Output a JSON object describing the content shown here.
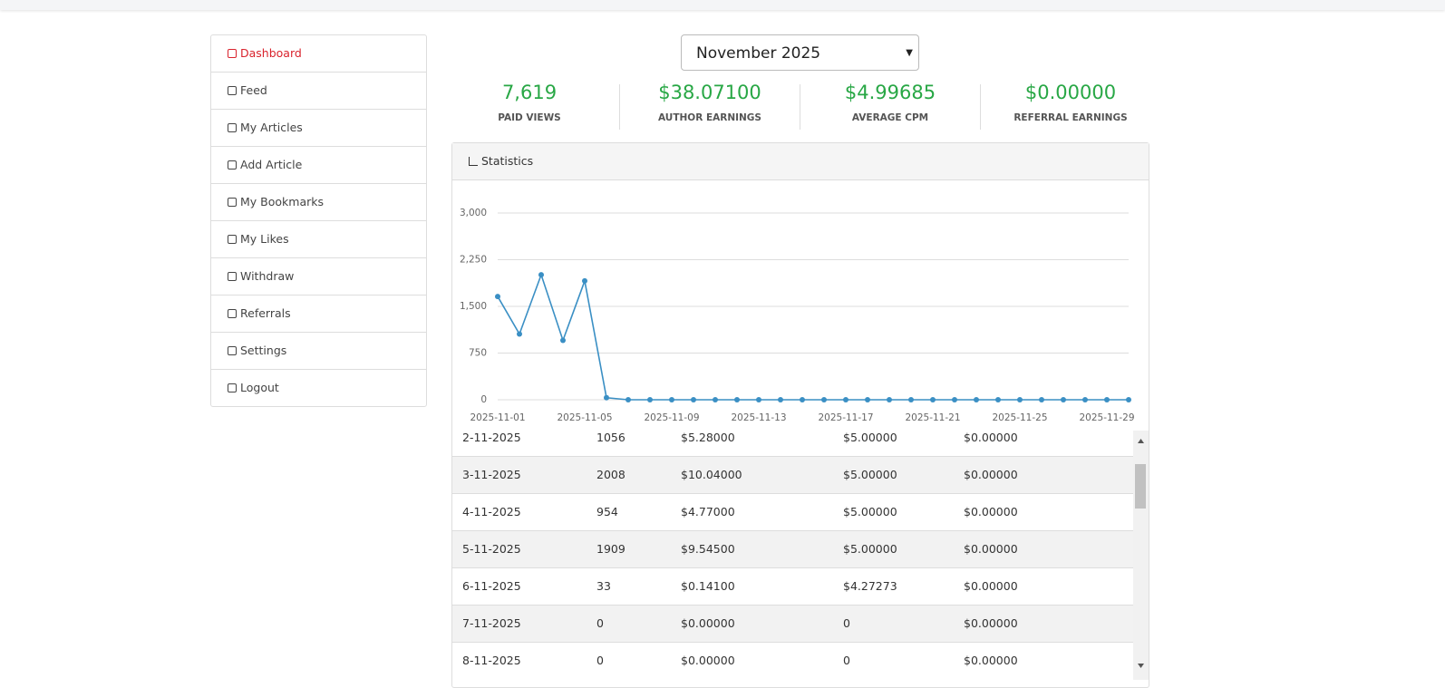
{
  "sidebar": {
    "items": [
      "Dashboard",
      "Feed",
      "My Articles",
      "Add Article",
      "My Bookmarks",
      "My Likes",
      "Withdraw",
      "Referrals",
      "Settings",
      "Logout"
    ]
  },
  "month_select": {
    "selected": "November 2025"
  },
  "stats": [
    {
      "value": "7,619",
      "label": "PAID VIEWS"
    },
    {
      "value": "$38.07100",
      "label": "AUTHOR EARNINGS"
    },
    {
      "value": "$4.99685",
      "label": "AVERAGE CPM"
    },
    {
      "value": "$0.00000",
      "label": "REFERRAL EARNINGS"
    }
  ],
  "panel": {
    "title": "Statistics"
  },
  "chart_data": {
    "type": "line",
    "color": "#3a8fc4",
    "grid": true,
    "categories": [
      "2025-11-01",
      null,
      null,
      null,
      "2025-11-05",
      null,
      null,
      null,
      "2025-11-09",
      null,
      null,
      null,
      "2025-11-13",
      null,
      null,
      null,
      "2025-11-17",
      null,
      null,
      null,
      "2025-11-21",
      null,
      null,
      null,
      "2025-11-25",
      null,
      null,
      null,
      "2025-11-29",
      null
    ],
    "values": [
      1659,
      1056,
      2008,
      954,
      1909,
      33,
      0,
      0,
      0,
      0,
      0,
      0,
      0,
      0,
      0,
      0,
      0,
      0,
      0,
      0,
      0,
      0,
      0,
      0,
      0,
      0,
      0,
      0,
      0,
      0
    ],
    "ylim": [
      0,
      3000
    ],
    "yticks": [
      0,
      750,
      {
        "value": 1500,
        "label": "1,500"
      },
      {
        "value": 2250,
        "label": "2,250"
      },
      {
        "value": 3000,
        "label": "3,000"
      }
    ]
  },
  "table": {
    "rows": [
      [
        "2-11-2025",
        "1056",
        "$5.28000",
        "$5.00000",
        "$0.00000"
      ],
      [
        "3-11-2025",
        "2008",
        "$10.04000",
        "$5.00000",
        "$0.00000"
      ],
      [
        "4-11-2025",
        "954",
        "$4.77000",
        "$5.00000",
        "$0.00000"
      ],
      [
        "5-11-2025",
        "1909",
        "$9.54500",
        "$5.00000",
        "$0.00000"
      ],
      [
        "6-11-2025",
        "33",
        "$0.14100",
        "$4.27273",
        "$0.00000"
      ],
      [
        "7-11-2025",
        "0",
        "$0.00000",
        "0",
        "$0.00000"
      ],
      [
        "8-11-2025",
        "0",
        "$0.00000",
        "0",
        "$0.00000"
      ]
    ]
  }
}
